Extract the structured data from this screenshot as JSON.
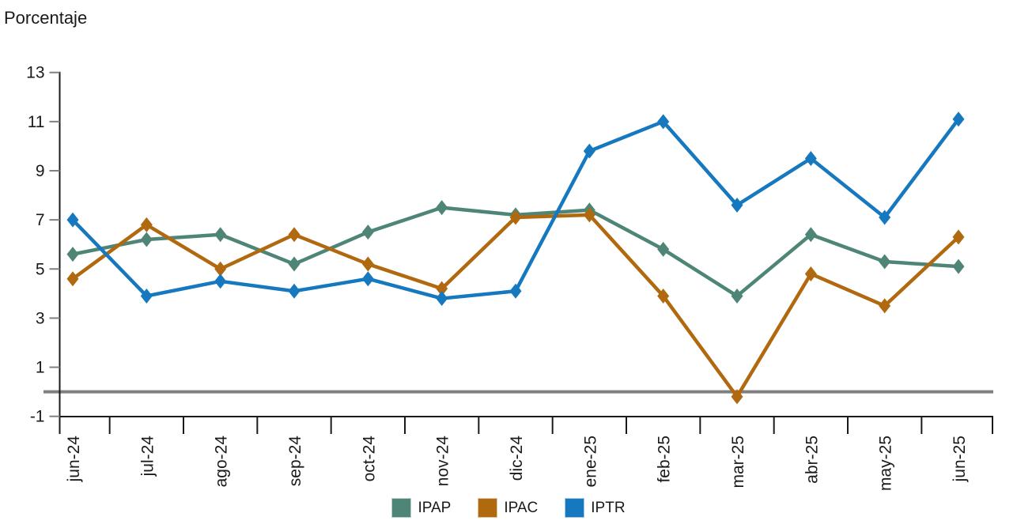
{
  "title": "Porcentaje",
  "legend": {
    "position": "bottom",
    "items": [
      {
        "label": "IPAP",
        "color": "#4E8577"
      },
      {
        "label": "IPAC",
        "color": "#B1690F"
      },
      {
        "label": "IPTR",
        "color": "#1678BE"
      }
    ]
  },
  "chart_data": {
    "type": "line",
    "title": "Porcentaje",
    "categories": [
      "jun-24",
      "jul-24",
      "ago-24",
      "sep-24",
      "oct-24",
      "nov-24",
      "dic-24",
      "ene-25",
      "feb-25",
      "mar-25",
      "abr-25",
      "may-25",
      "jun-25"
    ],
    "series": [
      {
        "name": "IPAP",
        "color": "#4E8577",
        "values": [
          5.6,
          6.2,
          6.4,
          5.2,
          6.5,
          7.5,
          7.2,
          7.4,
          5.8,
          3.9,
          6.4,
          5.3,
          5.1
        ]
      },
      {
        "name": "IPAC",
        "color": "#B1690F",
        "values": [
          4.6,
          6.8,
          5.0,
          6.4,
          5.2,
          4.2,
          7.1,
          7.2,
          3.9,
          -0.2,
          4.8,
          3.5,
          6.3
        ]
      },
      {
        "name": "IPTR",
        "color": "#1678BE",
        "values": [
          7.0,
          3.9,
          4.5,
          4.1,
          4.6,
          3.8,
          4.1,
          9.8,
          11.0,
          7.6,
          9.5,
          7.1,
          11.1
        ]
      }
    ],
    "xlabel": "",
    "ylabel": "Porcentaje",
    "ylim": [
      -1,
      13
    ],
    "yticks": [
      13,
      11,
      9,
      7,
      5,
      3,
      1,
      -1
    ],
    "ytick_labels": [
      "13",
      "11",
      "9",
      "7",
      "5",
      "3",
      "1",
      "-1"
    ],
    "zero_line": {
      "value": 0,
      "color": "#7F7F7F"
    },
    "grid": false,
    "legend_position": "bottom",
    "marker": "diamond",
    "x_label_rotation_deg": -90
  },
  "colors": {
    "axis": "#1a1a1a",
    "tick": "#808080",
    "text": "#1a1a1a",
    "background": "#ffffff"
  }
}
